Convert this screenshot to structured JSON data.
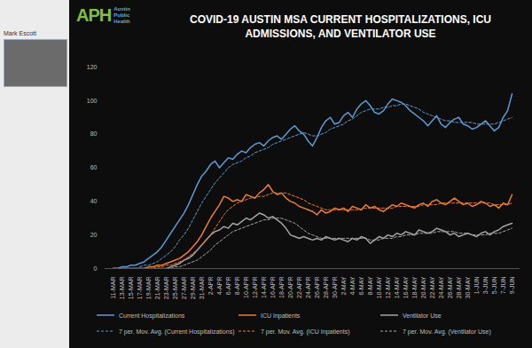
{
  "chart_data": {
    "type": "line",
    "title": "COVID-19 AUSTIN MSA CURRENT HOSPITALIZATIONS, ICU ADMISSIONS, AND VENTILATOR USE",
    "annotations": [
      "APH",
      "Austin Public Health",
      "Mark Escott"
    ],
    "categories": [
      "11-MAR",
      null,
      "13-MAR",
      null,
      "15-MAR",
      null,
      "17-MAR",
      null,
      "19-MAR",
      null,
      "21-MAR",
      null,
      "23-MAR",
      null,
      "25-MAR",
      null,
      "27-MAR",
      null,
      "29-MAR",
      null,
      "31-MAR",
      null,
      "2-APR",
      null,
      "4-APR",
      null,
      "6-APR",
      null,
      "8-APR",
      null,
      "10-APR",
      null,
      "12-APR",
      null,
      "14-APR",
      null,
      "16-APR",
      null,
      "18-APR",
      null,
      "20-APR",
      null,
      "22-APR",
      null,
      "24-APR",
      null,
      "26-APR",
      null,
      "28-APR",
      null,
      "30-APR",
      null,
      "2-MAY",
      null,
      "4-MAY",
      null,
      "6-MAY",
      null,
      "8-MAY",
      null,
      "10-MAY",
      null,
      "12-MAY",
      null,
      "14-MAY",
      null,
      "16-MAY",
      null,
      "18-MAY",
      null,
      "20-MAY",
      null,
      "22-MAY",
      null,
      "24-MAY",
      null,
      "26-MAY",
      null,
      "28-MAY",
      null,
      "30-MAY",
      null,
      "1-JUN",
      null,
      "3-JUN",
      null,
      "5-JUN",
      null,
      "7-JUN",
      null,
      "9-JUN"
    ],
    "ylim": [
      0,
      120
    ],
    "yticks": [
      0,
      20,
      40,
      60,
      80,
      100,
      120
    ],
    "grid": false,
    "legend": "bottom",
    "series": [
      {
        "name": "Current Hospitalizations",
        "color": "#5b9bd5",
        "line_style": "solid",
        "values": [
          0,
          0,
          1,
          1,
          2,
          2,
          3,
          4,
          6,
          8,
          10,
          13,
          17,
          21,
          25,
          29,
          33,
          38,
          44,
          50,
          55,
          58,
          62,
          64,
          60,
          63,
          66,
          65,
          68,
          70,
          69,
          72,
          74,
          75,
          73,
          76,
          78,
          79,
          77,
          80,
          83,
          85,
          82,
          80,
          76,
          73,
          78,
          84,
          88,
          90,
          86,
          87,
          91,
          93,
          90,
          95,
          98,
          100,
          97,
          93,
          92,
          94,
          98,
          101,
          100,
          99,
          97,
          94,
          92,
          90,
          88,
          85,
          88,
          91,
          86,
          84,
          87,
          89,
          90,
          86,
          85,
          83,
          84,
          86,
          88,
          85,
          82,
          84,
          90,
          94,
          104
        ]
      },
      {
        "name": "ICU Inpatients",
        "color": "#ed7d31",
        "line_style": "solid",
        "values": [
          0,
          0,
          0,
          0,
          0,
          0,
          0,
          0,
          1,
          1,
          2,
          2,
          3,
          4,
          5,
          6,
          8,
          10,
          13,
          16,
          20,
          25,
          30,
          34,
          38,
          43,
          42,
          40,
          41,
          40,
          44,
          43,
          42,
          45,
          47,
          50,
          46,
          44,
          45,
          42,
          40,
          39,
          37,
          36,
          35,
          34,
          32,
          35,
          33,
          34,
          36,
          35,
          36,
          34,
          37,
          36,
          35,
          38,
          36,
          37,
          35,
          34,
          36,
          38,
          37,
          39,
          38,
          37,
          36,
          38,
          39,
          37,
          40,
          41,
          39,
          38,
          40,
          42,
          40,
          38,
          39,
          37,
          38,
          40,
          39,
          37,
          38,
          36,
          39,
          38,
          44
        ]
      },
      {
        "name": "Ventilator Use",
        "color": "#a5a5a5",
        "line_style": "solid",
        "values": [
          0,
          0,
          0,
          0,
          0,
          0,
          0,
          0,
          0,
          0,
          0,
          0,
          0,
          1,
          2,
          3,
          5,
          6,
          8,
          11,
          14,
          17,
          20,
          22,
          23,
          25,
          24,
          27,
          26,
          28,
          30,
          29,
          31,
          33,
          32,
          30,
          31,
          29,
          27,
          24,
          20,
          19,
          18,
          19,
          18,
          17,
          18,
          17,
          19,
          18,
          17,
          18,
          17,
          16,
          18,
          17,
          19,
          18,
          15,
          17,
          19,
          18,
          20,
          19,
          21,
          20,
          22,
          21,
          20,
          23,
          22,
          21,
          22,
          24,
          23,
          22,
          20,
          21,
          19,
          20,
          21,
          20,
          19,
          21,
          22,
          20,
          22,
          23,
          25,
          26,
          27
        ]
      },
      {
        "name": "7 per. Mov. Avg. (Current Hospitalizations)",
        "color": "#5b9bd5",
        "line_style": "dashed",
        "values": [
          null,
          null,
          null,
          null,
          null,
          null,
          1,
          2,
          2,
          3,
          4,
          6,
          8,
          10,
          13,
          17,
          20,
          24,
          29,
          34,
          39,
          43,
          47,
          51,
          54,
          57,
          60,
          62,
          63,
          64,
          66,
          67,
          69,
          70,
          71,
          72,
          74,
          75,
          76,
          77,
          78,
          79,
          80,
          81,
          80,
          79,
          79,
          80,
          81,
          83,
          84,
          85,
          86,
          88,
          89,
          91,
          93,
          94,
          95,
          95,
          95,
          96,
          96,
          97,
          97,
          98,
          98,
          97,
          96,
          95,
          93,
          92,
          91,
          90,
          89,
          88,
          88,
          87,
          87,
          87,
          87,
          87,
          86,
          86,
          86,
          86,
          86,
          87,
          88,
          89,
          90
        ]
      },
      {
        "name": "7 per. Mov. Avg. (ICU Inpatients)",
        "color": "#ed7d31",
        "line_style": "dashed",
        "values": [
          null,
          null,
          null,
          null,
          null,
          null,
          0,
          0,
          0,
          0,
          1,
          1,
          2,
          2,
          3,
          4,
          5,
          7,
          9,
          11,
          14,
          17,
          20,
          24,
          28,
          32,
          35,
          37,
          39,
          40,
          41,
          42,
          42,
          43,
          43,
          44,
          45,
          45,
          45,
          45,
          44,
          43,
          42,
          41,
          39,
          38,
          37,
          36,
          35,
          35,
          35,
          35,
          35,
          35,
          35,
          35,
          35,
          36,
          36,
          36,
          36,
          36,
          36,
          36,
          37,
          37,
          37,
          37,
          37,
          37,
          38,
          38,
          38,
          38,
          39,
          39,
          39,
          39,
          39,
          39,
          39,
          39,
          39,
          39,
          39,
          39,
          38,
          38,
          38,
          38,
          39
        ]
      },
      {
        "name": "7 per. Mov. Avg. (Ventilator Use)",
        "color": "#a5a5a5",
        "line_style": "dashed",
        "values": [
          null,
          null,
          null,
          null,
          null,
          null,
          0,
          0,
          0,
          0,
          0,
          0,
          0,
          0,
          1,
          1,
          2,
          3,
          4,
          5,
          7,
          9,
          11,
          14,
          16,
          18,
          20,
          22,
          23,
          24,
          25,
          26,
          27,
          28,
          29,
          29,
          30,
          30,
          30,
          29,
          28,
          27,
          25,
          23,
          21,
          20,
          19,
          18,
          18,
          18,
          18,
          18,
          18,
          18,
          18,
          18,
          18,
          18,
          17,
          17,
          17,
          18,
          18,
          18,
          19,
          19,
          20,
          20,
          20,
          21,
          21,
          21,
          21,
          22,
          22,
          22,
          22,
          22,
          21,
          21,
          21,
          20,
          20,
          20,
          20,
          21,
          21,
          21,
          22,
          23,
          24
        ]
      }
    ]
  }
}
